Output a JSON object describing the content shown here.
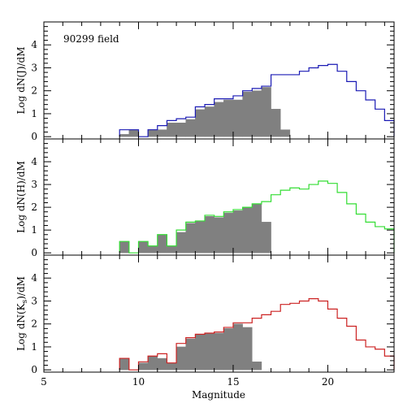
{
  "chart_data": [
    {
      "type": "bar",
      "title": "",
      "annotation": "90299 field",
      "xlabel": "",
      "ylabel": "Log dN(J)/dM",
      "ylabel_parts": {
        "main": "Log dN(J)/dM"
      },
      "xlim": [
        5,
        23.5
      ],
      "ylim": [
        -0.1,
        5
      ],
      "x_ticks": [
        "5",
        "10",
        "15",
        "20"
      ],
      "y_ticks": [
        "0",
        "1",
        "2",
        "3",
        "4"
      ],
      "grid": false,
      "bin_width": 0.5,
      "series": [
        {
          "name": "",
          "style": "step-outline",
          "color": "#1a1ab4",
          "bin_starts": [
            9.0,
            9.5,
            10.0,
            10.5,
            11.0,
            11.5,
            12.0,
            12.5,
            13.0,
            13.5,
            14.0,
            14.5,
            15.0,
            15.5,
            16.0,
            16.5,
            17.0,
            17.5,
            18.0,
            18.5,
            19.0,
            19.5,
            20.0,
            20.5,
            21.0,
            21.5,
            22.0,
            22.5,
            23.0
          ],
          "values": [
            0.3,
            0.3,
            0.0,
            0.3,
            0.48,
            0.7,
            0.78,
            0.85,
            1.3,
            1.4,
            1.65,
            1.65,
            1.78,
            2.0,
            2.1,
            2.2,
            2.7,
            2.7,
            2.7,
            2.85,
            3.0,
            3.1,
            3.15,
            2.85,
            2.4,
            2.0,
            1.6,
            1.2,
            0.7
          ]
        },
        {
          "name": "",
          "style": "filled",
          "color": "#808080",
          "bin_starts": [
            9.0,
            9.5,
            10.0,
            10.5,
            11.0,
            11.5,
            12.0,
            12.5,
            13.0,
            13.5,
            14.0,
            14.5,
            15.0,
            15.5,
            16.0,
            16.5,
            17.0,
            17.5
          ],
          "values": [
            0.1,
            0.3,
            0.0,
            0.3,
            0.3,
            0.6,
            0.6,
            0.75,
            1.18,
            1.3,
            1.5,
            1.6,
            1.6,
            1.95,
            2.0,
            2.15,
            1.2,
            0.3
          ]
        }
      ]
    },
    {
      "type": "bar",
      "title": "",
      "xlabel": "",
      "ylabel": "Log dN(H)/dM",
      "ylabel_parts": {
        "main": "Log dN(H)/dM"
      },
      "xlim": [
        5,
        23.5
      ],
      "ylim": [
        -0.1,
        5
      ],
      "x_ticks": [
        "5",
        "10",
        "15",
        "20"
      ],
      "y_ticks": [
        "0",
        "1",
        "2",
        "3",
        "4"
      ],
      "grid": false,
      "bin_width": 0.5,
      "series": [
        {
          "name": "",
          "style": "step-outline",
          "color": "#33dd33",
          "bin_starts": [
            9.0,
            9.5,
            10.0,
            10.5,
            11.0,
            11.5,
            12.0,
            12.5,
            13.0,
            13.5,
            14.0,
            14.5,
            15.0,
            15.5,
            16.0,
            16.5,
            17.0,
            17.5,
            18.0,
            18.5,
            19.0,
            19.5,
            20.0,
            20.5,
            21.0,
            21.5,
            22.0,
            22.5,
            23.0
          ],
          "values": [
            0.5,
            0.0,
            0.5,
            0.3,
            0.8,
            0.3,
            1.0,
            1.35,
            1.4,
            1.65,
            1.6,
            1.8,
            1.9,
            2.0,
            2.15,
            2.25,
            2.55,
            2.75,
            2.85,
            2.8,
            3.0,
            3.15,
            3.05,
            2.65,
            2.15,
            1.7,
            1.35,
            1.15,
            1.05
          ]
        },
        {
          "name": "",
          "style": "filled",
          "color": "#808080",
          "bin_starts": [
            9.0,
            9.5,
            10.0,
            10.5,
            11.0,
            11.5,
            12.0,
            12.5,
            13.0,
            13.5,
            14.0,
            14.5,
            15.0,
            15.5,
            16.0,
            16.5
          ],
          "values": [
            0.5,
            0.0,
            0.5,
            0.3,
            0.8,
            0.3,
            0.9,
            1.3,
            1.4,
            1.6,
            1.55,
            1.75,
            1.85,
            2.0,
            2.15,
            1.35
          ]
        }
      ]
    },
    {
      "type": "bar",
      "title": "",
      "xlabel": "Magnitude",
      "ylabel": "Log dN(Ks)/dM",
      "ylabel_parts": {
        "main": "Log dN(K",
        "sub": "s",
        "end": ")/dM"
      },
      "xlim": [
        5,
        23.5
      ],
      "ylim": [
        -0.1,
        5
      ],
      "x_ticks": [
        "5",
        "10",
        "15",
        "20"
      ],
      "y_ticks": [
        "0",
        "1",
        "2",
        "3",
        "4"
      ],
      "grid": false,
      "bin_width": 0.5,
      "series": [
        {
          "name": "",
          "style": "step-outline",
          "color": "#cc2222",
          "bin_starts": [
            9.0,
            9.5,
            10.0,
            10.5,
            11.0,
            11.5,
            12.0,
            12.5,
            13.0,
            13.5,
            14.0,
            14.5,
            15.0,
            15.5,
            16.0,
            16.5,
            17.0,
            17.5,
            18.0,
            18.5,
            19.0,
            19.5,
            20.0,
            20.5,
            21.0,
            21.5,
            22.0,
            22.5,
            23.0
          ],
          "values": [
            0.5,
            0.0,
            0.35,
            0.6,
            0.7,
            0.3,
            1.15,
            1.4,
            1.55,
            1.6,
            1.65,
            1.85,
            2.05,
            2.05,
            2.25,
            2.4,
            2.55,
            2.85,
            2.9,
            3.0,
            3.1,
            3.0,
            2.65,
            2.25,
            1.9,
            1.3,
            1.0,
            0.9,
            0.6
          ]
        },
        {
          "name": "",
          "style": "filled",
          "color": "#808080",
          "bin_starts": [
            9.0,
            9.5,
            10.0,
            10.5,
            11.0,
            11.5,
            12.0,
            12.5,
            13.0,
            13.5,
            14.0,
            14.5,
            15.0,
            15.5,
            16.0
          ],
          "values": [
            0.5,
            0.0,
            0.3,
            0.6,
            0.5,
            0.3,
            1.0,
            1.35,
            1.55,
            1.6,
            1.6,
            1.8,
            2.0,
            1.85,
            0.35
          ]
        }
      ]
    }
  ]
}
